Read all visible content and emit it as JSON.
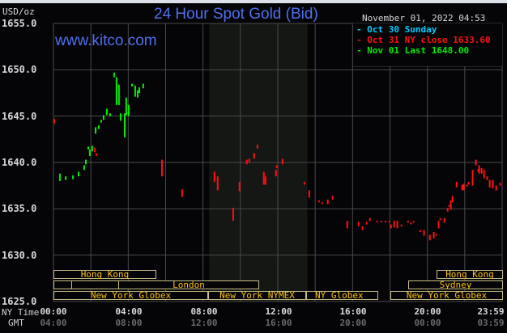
{
  "header": {
    "unit": "USD/oz",
    "title": "24 Hour Spot Gold (Bid)",
    "timestamp": "November 01, 2022 04:53",
    "site": "www.kitco.com"
  },
  "legend": [
    {
      "label": "Oct 30 Sunday",
      "color": "#00ccff"
    },
    {
      "label": "Oct 31 NY close 1633.60",
      "color": "#ff1010"
    },
    {
      "label": "Nov 01 Last 1648.00",
      "color": "#00ee00"
    }
  ],
  "axis": {
    "row_labels": {
      "ny": "NY Time",
      "gmt": "GMT"
    },
    "y_ticks": [
      "1655.0",
      "1650.0",
      "1645.0",
      "1640.0",
      "1635.0",
      "1630.0",
      "1625.0"
    ],
    "x_ticks_ny": [
      "00:00",
      "04:00",
      "08:00",
      "12:00",
      "16:00",
      "20:00",
      "23:59"
    ],
    "x_ticks_gmt": [
      "04:00",
      "08:00",
      "12:00",
      "16:00",
      "20:00",
      "00:00",
      "03:59"
    ]
  },
  "sessions": {
    "hong_kong": "Hong Kong",
    "london": "London",
    "ny_globex": "New York Globex",
    "ny_nymex": "New York NYMEX",
    "ny_globex_short": "NY Globex",
    "sydney": "Sydney"
  },
  "chart_data": {
    "type": "line",
    "title": "24 Hour Spot Gold (Bid)",
    "ylabel": "USD/oz",
    "xlabel": "NY Time",
    "ylim": [
      1625,
      1655
    ],
    "xlim": [
      0,
      24
    ],
    "grid": true,
    "legend_position": "top-right",
    "shaded_hours": [
      8.33,
      13.58
    ],
    "series": [
      {
        "name": "Nov 01 Last 1648.00",
        "color": "#00ee00",
        "bars": [
          [
            0.3,
            1638.0,
            1638.8
          ],
          [
            0.61,
            1638.1,
            1638.5
          ],
          [
            1.0,
            1638.2,
            1638.6
          ],
          [
            1.3,
            1638.5,
            1639.0
          ],
          [
            1.6,
            1639.2,
            1639.7
          ],
          [
            1.69,
            1639.8,
            1640.3
          ],
          [
            1.82,
            1641.4,
            1641.7
          ],
          [
            1.9,
            1640.7,
            1641.4
          ],
          [
            2.03,
            1641.2,
            1641.8
          ],
          [
            2.21,
            1643.1,
            1643.8
          ],
          [
            2.38,
            1643.6,
            1644.0
          ],
          [
            2.51,
            1644.3,
            1644.6
          ],
          [
            2.64,
            1644.6,
            1645.1
          ],
          [
            2.81,
            1645.1,
            1645.8
          ],
          [
            2.99,
            1645.0,
            1645.3
          ],
          [
            3.2,
            1649.2,
            1649.7
          ],
          [
            3.33,
            1646.2,
            1649.2
          ],
          [
            3.46,
            1646.2,
            1648.4
          ],
          [
            3.55,
            1644.5,
            1645.3
          ],
          [
            3.77,
            1642.7,
            1645.3
          ],
          [
            3.85,
            1645.1,
            1647.0
          ],
          [
            3.98,
            1645.0,
            1646.2
          ],
          [
            4.16,
            1648.2,
            1648.5
          ],
          [
            4.33,
            1647.1,
            1648.3
          ],
          [
            4.46,
            1647.0,
            1647.8
          ],
          [
            4.55,
            1647.5,
            1648.1
          ],
          [
            4.76,
            1648.0,
            1648.5
          ]
        ]
      },
      {
        "name": "Oct 31 NY close 1633.60",
        "color": "#ff1010",
        "bars": [
          [
            0.0,
            1644.2,
            1644.7
          ],
          [
            2.16,
            1641.1,
            1641.6
          ],
          [
            2.25,
            1640.7,
            1641.0
          ],
          [
            5.76,
            1638.5,
            1640.3
          ],
          [
            6.84,
            1636.3,
            1637.1
          ],
          [
            8.57,
            1637.9,
            1639.0
          ],
          [
            8.74,
            1637.0,
            1638.5
          ],
          [
            9.57,
            1633.7,
            1635.1
          ],
          [
            9.91,
            1636.9,
            1637.9
          ],
          [
            10.3,
            1639.8,
            1640.3
          ],
          [
            10.43,
            1640.0,
            1640.4
          ],
          [
            10.69,
            1640.4,
            1641.0
          ],
          [
            10.87,
            1641.5,
            1641.9
          ],
          [
            11.21,
            1637.6,
            1639.0
          ],
          [
            11.3,
            1637.6,
            1638.5
          ],
          [
            11.86,
            1638.5,
            1639.2
          ],
          [
            11.9,
            1639.4,
            1639.7
          ],
          [
            12.21,
            1639.8,
            1640.4
          ],
          [
            13.38,
            1637.6,
            1637.9
          ],
          [
            13.64,
            1636.2,
            1637.0
          ],
          [
            14.16,
            1635.7,
            1635.9
          ],
          [
            14.33,
            1635.6,
            1635.7
          ],
          [
            14.63,
            1635.5,
            1636.0
          ],
          [
            14.89,
            1636.0,
            1636.4
          ],
          [
            15.67,
            1632.9,
            1633.7
          ],
          [
            16.28,
            1633.1,
            1633.6
          ],
          [
            16.49,
            1632.7,
            1633.1
          ],
          [
            16.71,
            1633.3,
            1633.6
          ],
          [
            16.88,
            1633.7,
            1634.0
          ],
          [
            17.27,
            1633.6,
            1633.7
          ],
          [
            17.49,
            1633.6,
            1633.7
          ],
          [
            17.71,
            1633.6,
            1633.7
          ],
          [
            17.92,
            1633.6,
            1633.7
          ],
          [
            18.01,
            1632.9,
            1633.3
          ],
          [
            18.18,
            1633.0,
            1633.7
          ],
          [
            18.35,
            1632.9,
            1633.7
          ],
          [
            18.57,
            1633.1,
            1633.3
          ],
          [
            18.92,
            1633.5,
            1633.7
          ],
          [
            19.09,
            1633.4,
            1633.5
          ],
          [
            19.22,
            1633.5,
            1633.7
          ],
          [
            19.57,
            1632.5,
            1632.7
          ],
          [
            19.78,
            1632.1,
            1632.7
          ],
          [
            20.09,
            1631.6,
            1632.2
          ],
          [
            20.3,
            1631.8,
            1632.5
          ],
          [
            20.43,
            1632.1,
            1632.3
          ],
          [
            20.56,
            1632.9,
            1633.7
          ],
          [
            20.65,
            1633.8,
            1634.0
          ],
          [
            20.87,
            1633.5,
            1634.0
          ],
          [
            21.04,
            1634.7,
            1635.1
          ],
          [
            21.13,
            1635.3,
            1635.4
          ],
          [
            21.21,
            1634.9,
            1635.9
          ],
          [
            21.3,
            1635.7,
            1636.4
          ],
          [
            21.52,
            1637.3,
            1637.9
          ],
          [
            21.82,
            1637.0,
            1637.6
          ],
          [
            21.9,
            1637.0,
            1637.7
          ],
          [
            22.08,
            1637.4,
            1637.6
          ],
          [
            22.16,
            1637.6,
            1637.9
          ],
          [
            22.38,
            1637.5,
            1639.2
          ],
          [
            22.55,
            1639.7,
            1640.3
          ],
          [
            22.68,
            1639.0,
            1639.3
          ],
          [
            22.73,
            1638.8,
            1639.7
          ],
          [
            22.86,
            1638.8,
            1639.4
          ],
          [
            22.99,
            1638.3,
            1639.2
          ],
          [
            23.16,
            1638.1,
            1638.5
          ],
          [
            23.29,
            1637.3,
            1638.1
          ],
          [
            23.46,
            1637.2,
            1638.1
          ],
          [
            23.64,
            1637.0,
            1637.5
          ],
          [
            23.85,
            1637.5,
            1637.8
          ]
        ]
      }
    ]
  }
}
